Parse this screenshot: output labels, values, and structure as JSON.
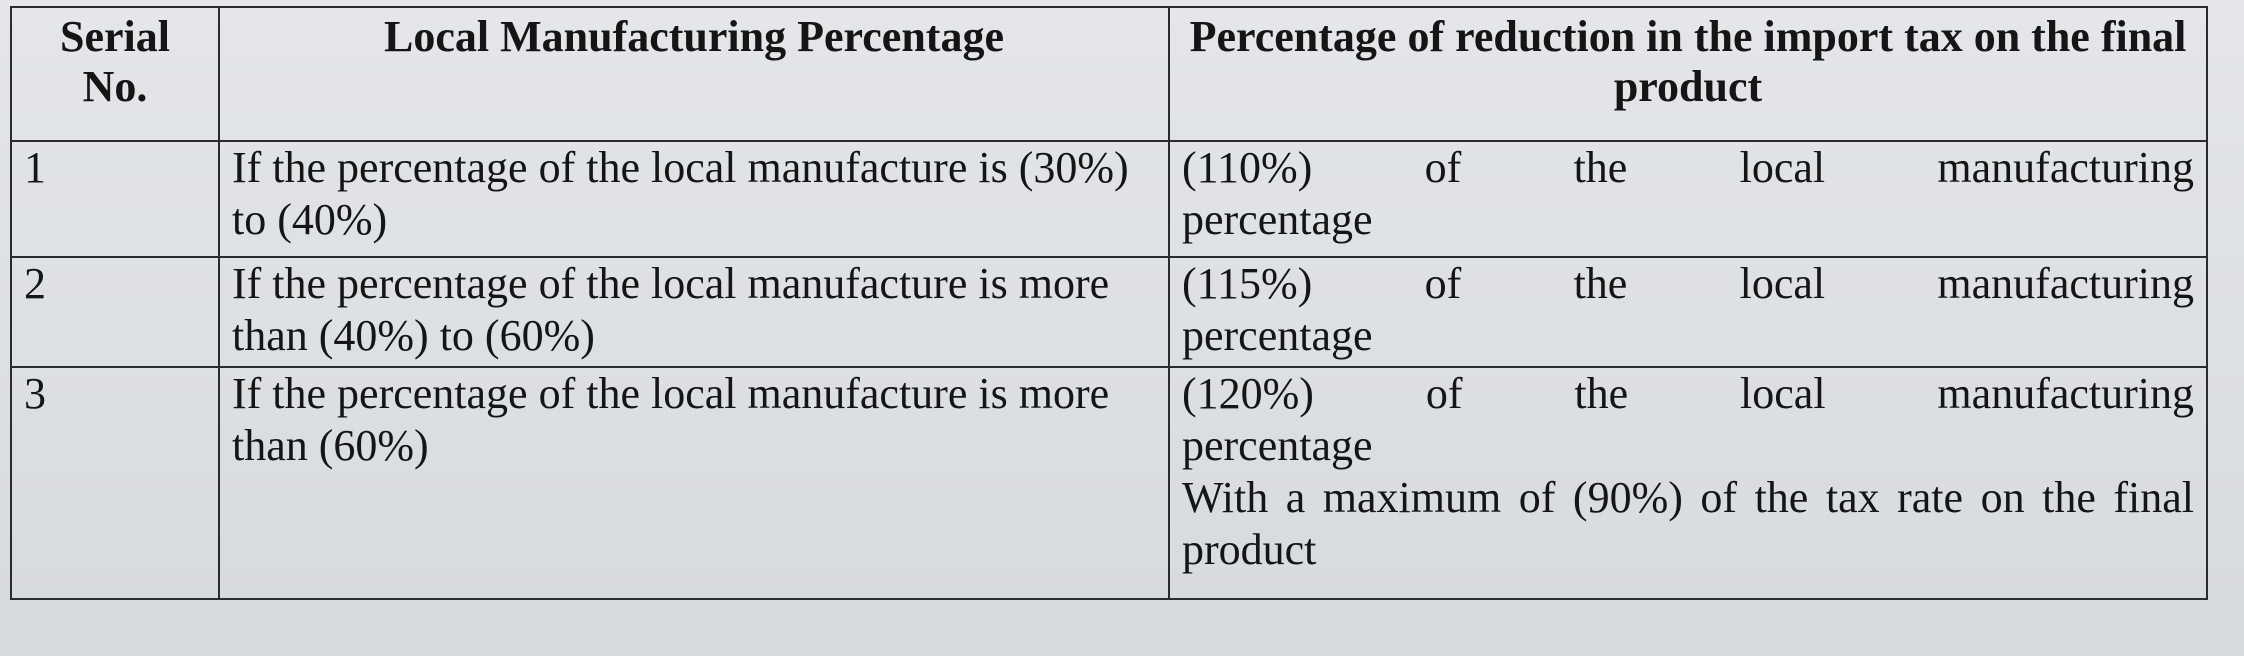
{
  "table": {
    "headers": {
      "serial": "Serial No.",
      "local_manufacturing": "Local Manufacturing Percentage",
      "reduction": "Percentage of reduction in the import tax on the final product"
    },
    "rows": [
      {
        "serial": "1",
        "condition": "If the percentage of the local manufacture is (30%) to (40%)",
        "reduction_line1": "(110%)   of   the   local   manufacturing",
        "reduction_line2": "percentage"
      },
      {
        "serial": "2",
        "condition": "If the percentage of the local manufacture is more than (40%) to (60%)",
        "reduction_line1": "(115%)   of   the   local   manufacturing",
        "reduction_line2": "percentage"
      },
      {
        "serial": "3",
        "condition": "If the percentage of the local manufacture is more than (60%)",
        "reduction_line1": "(120%)   of   the   local   manufacturing",
        "reduction_line2": "percentage",
        "reduction_note": "With a maximum of (90%) of the tax rate on the final product"
      }
    ]
  }
}
